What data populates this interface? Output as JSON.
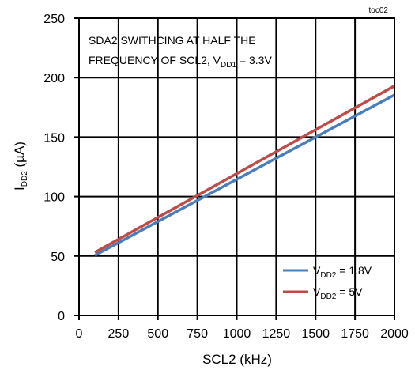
{
  "figure_id": "toc02",
  "chart_data": {
    "type": "line",
    "xlabel": "SCL2 (kHz)",
    "ylabel": {
      "main": "I",
      "sub": "DD2",
      "rest": " (µA)"
    },
    "xlim": [
      0,
      2000
    ],
    "ylim": [
      0,
      250
    ],
    "x_ticks": [
      0,
      250,
      500,
      750,
      1000,
      1250,
      1500,
      1750,
      2000
    ],
    "y_ticks": [
      0,
      50,
      100,
      150,
      200,
      250
    ],
    "grid": true,
    "annotation": {
      "line1": "SDA2 SWITHCING AT HALF THE",
      "line2_prefix": "FREQUENCY OF SCL2, V",
      "line2_sub": "DD1",
      "line2_suffix": " = 3.3V"
    },
    "legend_position": "bottom-right",
    "series": [
      {
        "name": {
          "prefix": "V",
          "sub": "DD2",
          "suffix": " = 1.8V"
        },
        "color": "#4a7ebb",
        "x": [
          100,
          2000
        ],
        "y": [
          50.5,
          185.5
        ]
      },
      {
        "name": {
          "prefix": "V",
          "sub": "DD2",
          "suffix": " = 5V"
        },
        "color": "#be4b48",
        "x": [
          100,
          2000
        ],
        "y": [
          53,
          193
        ]
      }
    ]
  }
}
